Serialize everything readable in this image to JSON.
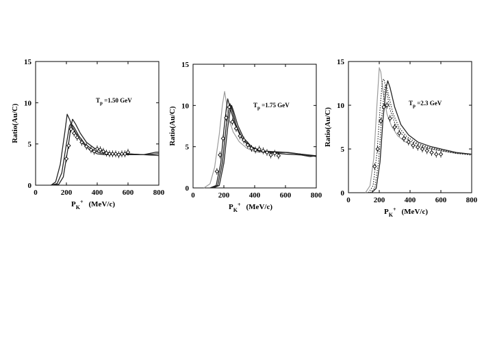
{
  "chart_data": [
    {
      "type": "line",
      "annotation": {
        "main": "T",
        "sub": "p",
        "rest": " =1.50 GeV"
      },
      "xlabel": {
        "main": "P",
        "sub": "K",
        "sup": "+",
        "unit": "(MeV/c)"
      },
      "ylabel": "Ratio(Au/C)",
      "xlim": [
        0,
        800
      ],
      "ylim": [
        0,
        15
      ],
      "xticks": [
        0,
        200,
        400,
        600,
        800
      ],
      "yticks": [
        0,
        5,
        10,
        15
      ],
      "series": [
        {
          "style": "solid",
          "x": [
            100,
            130,
            160,
            190,
            205,
            220,
            240,
            270,
            300,
            350,
            400,
            450,
            500,
            600,
            700,
            800
          ],
          "y": [
            0,
            0.4,
            2.5,
            6.5,
            8.6,
            8.0,
            7.0,
            6.0,
            5.2,
            4.3,
            3.8,
            3.7,
            3.7,
            3.7,
            3.7,
            3.8
          ]
        },
        {
          "style": "solid",
          "x": [
            100,
            140,
            170,
            200,
            220,
            230,
            250,
            280,
            320,
            370,
            420,
            500,
            600,
            700,
            800
          ],
          "y": [
            0,
            0.2,
            1.5,
            5.0,
            7.2,
            7.5,
            7.0,
            6.0,
            5.0,
            4.3,
            3.9,
            3.8,
            3.8,
            3.7,
            3.6
          ]
        },
        {
          "style": "solid",
          "x": [
            100,
            150,
            180,
            210,
            230,
            240,
            260,
            290,
            330,
            380,
            450,
            520,
            600,
            700,
            780,
            800
          ],
          "y": [
            0,
            0.1,
            1.0,
            4.5,
            7.2,
            8.0,
            7.4,
            6.3,
            5.2,
            4.5,
            4.0,
            3.8,
            3.8,
            3.7,
            4.0,
            4.0
          ]
        }
      ],
      "points": {
        "x": [
          200,
          215,
          230,
          250,
          270,
          300,
          330,
          360,
          380,
          400,
          420,
          440,
          460,
          480,
          500,
          520,
          540,
          560,
          580,
          600
        ],
        "y": [
          3.2,
          4.8,
          6.8,
          6.3,
          5.8,
          5.2,
          4.7,
          4.3,
          4.1,
          4.4,
          4.3,
          4.1,
          3.9,
          3.8,
          3.8,
          3.8,
          3.7,
          3.8,
          3.8,
          4.0
        ]
      }
    },
    {
      "type": "line",
      "annotation": {
        "main": "T",
        "sub": "p",
        "rest": " =1.75 GeV"
      },
      "xlabel": {
        "main": "P",
        "sub": "K",
        "sup": "+",
        "unit": "(MeV/c)"
      },
      "ylabel": "Ratio(Au/C)",
      "xlim": [
        0,
        800
      ],
      "ylim": [
        0,
        15
      ],
      "xticks": [
        0,
        200,
        400,
        600,
        800
      ],
      "yticks": [
        0,
        5,
        10,
        15
      ],
      "series": [
        {
          "style": "gray",
          "x": [
            70,
            110,
            140,
            170,
            190,
            205,
            215,
            230,
            260,
            300,
            350,
            400,
            500,
            600,
            700,
            800
          ],
          "y": [
            0,
            0.5,
            2.5,
            6.5,
            10,
            11.7,
            10.5,
            8.5,
            6.8,
            5.6,
            4.8,
            4.4,
            4.2,
            4.1,
            4.0,
            3.9
          ]
        },
        {
          "style": "solid",
          "x": [
            110,
            150,
            180,
            200,
            215,
            225,
            240,
            270,
            310,
            360,
            420,
            500,
            600,
            700,
            760,
            800
          ],
          "y": [
            0,
            0.3,
            3.0,
            7.0,
            9.5,
            10.8,
            9.8,
            7.8,
            6.2,
            5.1,
            4.5,
            4.3,
            4.1,
            4.0,
            3.8,
            3.9
          ]
        },
        {
          "style": "solid",
          "x": [
            120,
            160,
            190,
            215,
            230,
            240,
            255,
            280,
            320,
            370,
            430,
            500,
            600,
            700,
            800
          ],
          "y": [
            0,
            0.3,
            3.0,
            7.5,
            9.2,
            10.2,
            9.4,
            7.6,
            6.0,
            5.0,
            4.5,
            4.3,
            4.3,
            4.1,
            3.8
          ]
        },
        {
          "style": "solid",
          "x": [
            130,
            170,
            200,
            225,
            240,
            250,
            265,
            290,
            330,
            380,
            440,
            520,
            620,
            700,
            800
          ],
          "y": [
            0,
            0.3,
            3.0,
            7.3,
            9.2,
            10.0,
            9.2,
            7.6,
            6.0,
            5.0,
            4.5,
            4.4,
            4.3,
            4.1,
            3.9
          ]
        }
      ],
      "points": {
        "x": [
          155,
          175,
          195,
          215,
          235,
          255,
          280,
          305,
          330,
          355,
          380,
          405,
          430,
          455,
          480,
          505,
          530,
          555
        ],
        "y": [
          2.0,
          4.0,
          6.0,
          8.5,
          9.8,
          8.0,
          7.2,
          6.3,
          5.8,
          5.2,
          4.8,
          4.6,
          4.7,
          4.5,
          4.3,
          4.0,
          4.2,
          3.9
        ]
      }
    },
    {
      "type": "line",
      "annotation": {
        "main": "T",
        "sub": "p",
        "rest": " =2.3 GeV"
      },
      "xlabel": {
        "main": "P",
        "sub": "K",
        "sup": "+",
        "unit": "(MeV/c)"
      },
      "ylabel": "Ratio(Au/C)",
      "xlim": [
        0,
        800
      ],
      "ylim": [
        0,
        15
      ],
      "xticks": [
        0,
        200,
        400,
        600,
        800
      ],
      "yticks": [
        0,
        5,
        10,
        15
      ],
      "series": [
        {
          "style": "gray",
          "x": [
            110,
            140,
            165,
            185,
            200,
            210,
            225,
            250,
            280,
            320,
            370,
            430,
            500,
            600,
            700,
            800
          ],
          "y": [
            0,
            0.8,
            4.0,
            10.0,
            14.3,
            13.8,
            11.5,
            9.0,
            7.6,
            6.5,
            5.8,
            5.4,
            5.1,
            4.8,
            4.5,
            4.4
          ]
        },
        {
          "style": "dotted",
          "x": [
            130,
            160,
            185,
            205,
            220,
            230,
            245,
            270,
            300,
            340,
            390,
            450,
            520,
            600,
            700,
            800
          ],
          "y": [
            0,
            0.8,
            4.5,
            9.5,
            12.8,
            13.0,
            11.8,
            9.5,
            8.0,
            6.8,
            6.0,
            5.5,
            5.1,
            4.8,
            4.5,
            4.4
          ]
        },
        {
          "style": "dotted",
          "x": [
            140,
            170,
            195,
            215,
            235,
            245,
            260,
            290,
            330,
            380,
            440,
            520,
            600,
            700,
            800
          ],
          "y": [
            0,
            0.5,
            3.5,
            8.5,
            12.0,
            12.4,
            11.2,
            9.0,
            7.4,
            6.4,
            5.7,
            5.2,
            4.9,
            4.5,
            4.3
          ]
        },
        {
          "style": "solid",
          "x": [
            150,
            180,
            205,
            225,
            245,
            255,
            270,
            300,
            340,
            390,
            450,
            530,
            600,
            700,
            800
          ],
          "y": [
            0,
            0.5,
            3.5,
            8.5,
            12.0,
            12.8,
            12.0,
            9.8,
            7.8,
            6.6,
            5.8,
            5.3,
            5.0,
            4.6,
            4.4
          ]
        }
      ],
      "points": {
        "x": [
          170,
          190,
          210,
          230,
          250,
          270,
          300,
          330,
          360,
          390,
          420,
          450,
          480,
          510,
          540,
          570,
          600
        ],
        "y": [
          3.0,
          5.0,
          8.2,
          9.8,
          10.0,
          8.5,
          7.5,
          6.8,
          6.2,
          5.8,
          5.4,
          5.2,
          5.0,
          4.8,
          4.6,
          4.4,
          4.4
        ]
      }
    }
  ]
}
